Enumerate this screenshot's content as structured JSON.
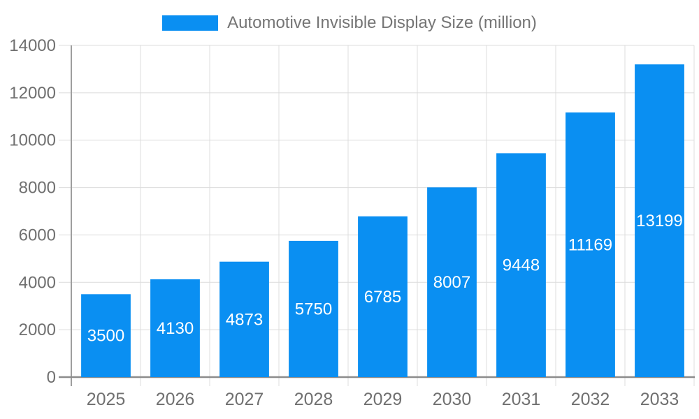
{
  "chart_data": {
    "type": "bar",
    "legend": "Automotive Invisible Display Size (million)",
    "series_name": "Automotive Invisible Display Size (million)",
    "categories": [
      "2025",
      "2026",
      "2027",
      "2028",
      "2029",
      "2030",
      "2031",
      "2032",
      "2033"
    ],
    "values": [
      3500,
      4130,
      4873,
      5750,
      6785,
      8007,
      9448,
      11169,
      13199
    ],
    "ylim": [
      0,
      14000
    ],
    "ytick_step": 2000,
    "ytick_labels": [
      "0",
      "2000",
      "4000",
      "6000",
      "8000",
      "10000",
      "12000",
      "14000"
    ],
    "grid": true,
    "legend_position": "top-center",
    "value_label_position": "inside-center",
    "colors": {
      "bar": "#0A8FF2",
      "grid": "#DCDCDC",
      "minor_tick": "#C8C8C8",
      "axis": "#8C8C8C",
      "tick_text": "#707070",
      "legend_text": "#757575",
      "value_label": "#FFFFFF",
      "background": "#FFFFFF"
    }
  }
}
